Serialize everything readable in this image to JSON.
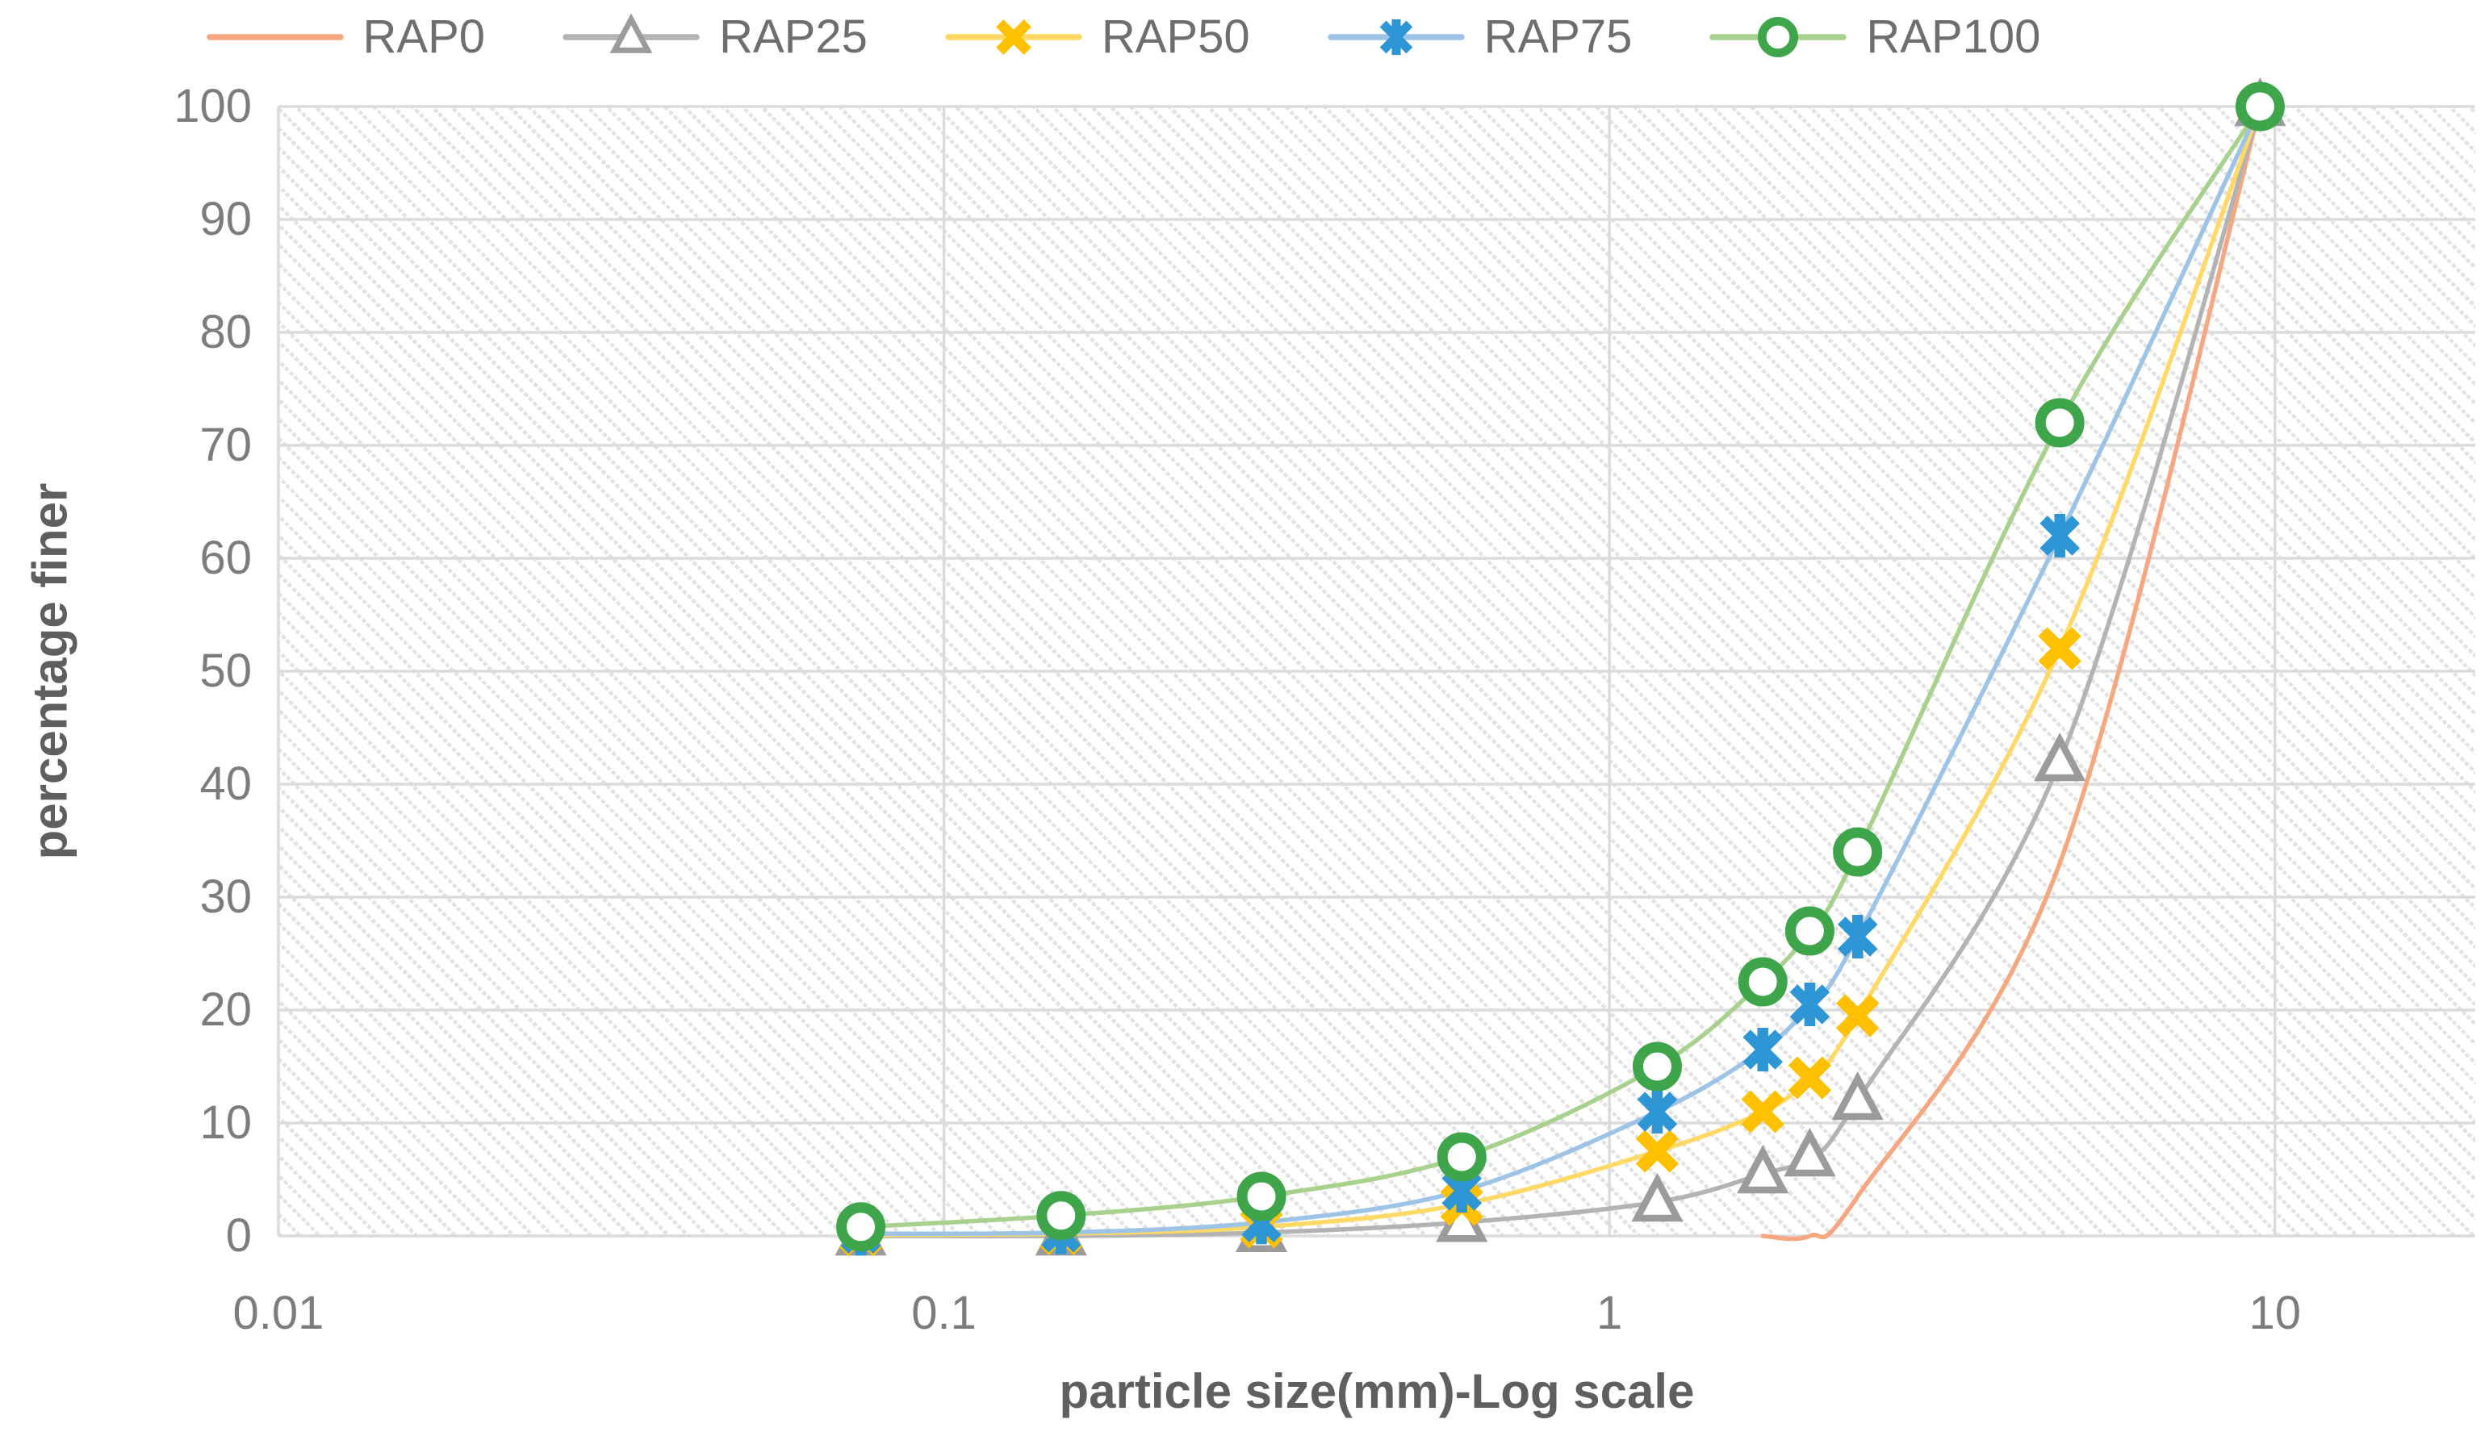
{
  "chart_data": {
    "type": "line",
    "title": "",
    "xlabel": "particle size(mm)-Log scale",
    "ylabel": "percentage finer",
    "x_scale": "log",
    "xlim": [
      0.01,
      20
    ],
    "ylim": [
      0,
      100
    ],
    "grid": true,
    "plot_background": "diagonal-hatch",
    "legend_position": "top",
    "x_tick_labels": [
      "0.01",
      "0.1",
      "1",
      "10"
    ],
    "x_tick_values": [
      0.01,
      0.1,
      1,
      10
    ],
    "y_tick_labels": [
      "100",
      "90",
      "80",
      "70",
      "60",
      "50",
      "40",
      "30",
      "20",
      "10",
      "0"
    ],
    "y_tick_values": [
      100,
      90,
      80,
      70,
      60,
      50,
      40,
      30,
      20,
      10,
      0
    ],
    "x": [
      0.075,
      0.15,
      0.3,
      0.6,
      1.18,
      1.7,
      2.0,
      2.36,
      4.75,
      9.5
    ],
    "series": [
      {
        "name": "RAP0",
        "marker": "none",
        "line_color": "#F5A87F",
        "marker_color": "#F2A17C",
        "values": [
          0,
          0,
          0,
          0,
          0,
          0,
          0,
          3.5,
          33,
          100
        ],
        "draw_from_index": 5
      },
      {
        "name": "RAP25",
        "marker": "triangle",
        "line_color": "#B3B3B3",
        "marker_color": "#9B9B9B",
        "values": [
          0,
          0,
          0.3,
          1.2,
          3,
          5.5,
          7,
          12,
          42,
          100
        ]
      },
      {
        "name": "RAP50",
        "marker": "x",
        "line_color": "#FFD966",
        "marker_color": "#FFC000",
        "values": [
          0.1,
          0.2,
          0.8,
          2.8,
          7.5,
          11,
          14,
          19.5,
          52,
          100
        ]
      },
      {
        "name": "RAP75",
        "marker": "asterisk",
        "line_color": "#9DC3E6",
        "marker_color": "#2E96D4",
        "values": [
          0.2,
          0.3,
          1.2,
          4,
          11,
          16.5,
          20.5,
          26.5,
          62,
          100
        ]
      },
      {
        "name": "RAP100",
        "marker": "circle",
        "line_color": "#A9D18E",
        "marker_color": "#3EA54A",
        "values": [
          0.8,
          1.8,
          3.5,
          7,
          15,
          22.5,
          27,
          34,
          72,
          100
        ]
      }
    ],
    "style": {
      "gridline_color": "#DBDBDB",
      "hatch_color": "#E2E2E2",
      "tick_text_color": "#7C7C7C",
      "title_text_color": "#5F5F5F",
      "legend_text_color": "#6E6E6E"
    }
  }
}
